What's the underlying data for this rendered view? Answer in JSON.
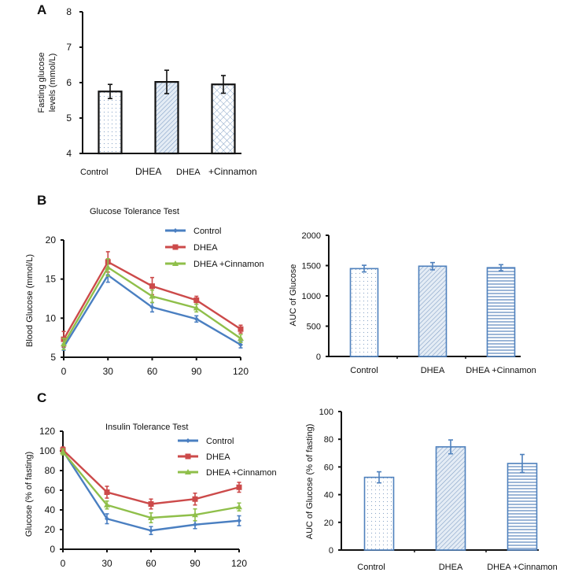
{
  "panels": {
    "A": "A",
    "B": "B",
    "C": "C"
  },
  "colors": {
    "control": "#4a7fc1",
    "dhea": "#cc4a4a",
    "cinnamon": "#8fbf4a",
    "bar_outline_a": "#111111",
    "bar_fill_a": "#c9d9ea",
    "bar_outline_bc": "#4f81bd"
  },
  "chart_data": [
    {
      "id": "A",
      "type": "bar",
      "title": "",
      "xlabel": "",
      "ylabel": "Fasting glucose levels (mmol/L)",
      "ylabel_lines": [
        "Fasting glucose",
        "levels (mmol/L)"
      ],
      "categories": [
        "Control",
        "DHEA",
        "DHEA +Cinnamon"
      ],
      "category_labels": [
        "Control",
        "DHEA",
        "DHEA",
        "+Cinnamon"
      ],
      "values": [
        5.75,
        6.02,
        5.95
      ],
      "errors": [
        0.2,
        0.33,
        0.25
      ],
      "patterns": [
        "dots",
        "diagonal",
        "crosshatch"
      ],
      "ylim": [
        4,
        8
      ],
      "yticks": [
        4,
        5,
        6,
        7,
        8
      ],
      "grid": false
    },
    {
      "id": "B-line",
      "type": "line",
      "title": "Glucose Tolerance Test",
      "xlabel": "",
      "ylabel": "Blood Glucose (mmol/L)",
      "x": [
        0,
        30,
        60,
        90,
        120
      ],
      "xticks": [
        0,
        30,
        60,
        90,
        120
      ],
      "ylim": [
        5,
        20
      ],
      "yticks": [
        5,
        10,
        15,
        20
      ],
      "legend_position": "top-right",
      "grid": false,
      "series": [
        {
          "name": "Control",
          "marker": "diamond",
          "color": "#4a7fc1",
          "values": [
            6.3,
            15.5,
            11.4,
            9.9,
            6.6
          ],
          "errors": [
            0.4,
            0.9,
            0.6,
            0.4,
            0.4
          ]
        },
        {
          "name": "DHEA",
          "marker": "square",
          "color": "#cc4a4a",
          "values": [
            7.3,
            17.2,
            14.1,
            12.3,
            8.6
          ],
          "errors": [
            1.0,
            1.3,
            1.1,
            0.5,
            0.5
          ]
        },
        {
          "name": "DHEA +Cinnamon",
          "marker": "triangle",
          "color": "#8fbf4a",
          "values": [
            6.7,
            16.5,
            12.8,
            11.3,
            7.4
          ],
          "errors": [
            0.7,
            1.1,
            0.8,
            0.5,
            0.5
          ]
        }
      ]
    },
    {
      "id": "B-bar",
      "type": "bar",
      "title": "",
      "xlabel": "",
      "ylabel": "AUC of Glucose",
      "categories": [
        "Control",
        "DHEA",
        "DHEA +Cinnamon"
      ],
      "values": [
        1450,
        1490,
        1465
      ],
      "errors": [
        55,
        60,
        50
      ],
      "patterns": [
        "dots",
        "diagonal",
        "horizontal"
      ],
      "ylim": [
        0,
        2000
      ],
      "yticks": [
        0,
        500,
        1000,
        1500,
        2000
      ],
      "grid": false
    },
    {
      "id": "C-line",
      "type": "line",
      "title": "Insulin Tolerance Test",
      "xlabel": "",
      "ylabel": "Glucose (% of fasting)",
      "x": [
        0,
        30,
        60,
        90,
        120
      ],
      "xticks": [
        0,
        30,
        60,
        90,
        120
      ],
      "ylim": [
        0,
        120
      ],
      "yticks": [
        0,
        20,
        40,
        60,
        80,
        100,
        120
      ],
      "legend_position": "top-right",
      "grid": false,
      "series": [
        {
          "name": "Control",
          "marker": "diamond",
          "color": "#4a7fc1",
          "values": [
            100,
            31,
            19,
            25,
            29
          ],
          "errors": [
            2,
            5,
            4,
            4,
            5
          ]
        },
        {
          "name": "DHEA",
          "marker": "square",
          "color": "#cc4a4a",
          "values": [
            101,
            58,
            46,
            51,
            63
          ],
          "errors": [
            3,
            6,
            5,
            6,
            5
          ]
        },
        {
          "name": "DHEA +Cinnamon",
          "marker": "triangle",
          "color": "#8fbf4a",
          "values": [
            99,
            45,
            32,
            35,
            43
          ],
          "errors": [
            3,
            4,
            5,
            6,
            4
          ]
        }
      ]
    },
    {
      "id": "C-bar",
      "type": "bar",
      "title": "",
      "xlabel": "",
      "ylabel": "AUC of Glucose (% of fasting)",
      "categories": [
        "Control",
        "DHEA",
        "DHEA +Cinnamon"
      ],
      "values": [
        52.5,
        74.5,
        62.5
      ],
      "errors": [
        4,
        5,
        6.5
      ],
      "patterns": [
        "dots",
        "diagonal",
        "horizontal"
      ],
      "ylim": [
        0,
        100
      ],
      "yticks": [
        0,
        20,
        40,
        60,
        80,
        100
      ],
      "grid": false
    }
  ]
}
